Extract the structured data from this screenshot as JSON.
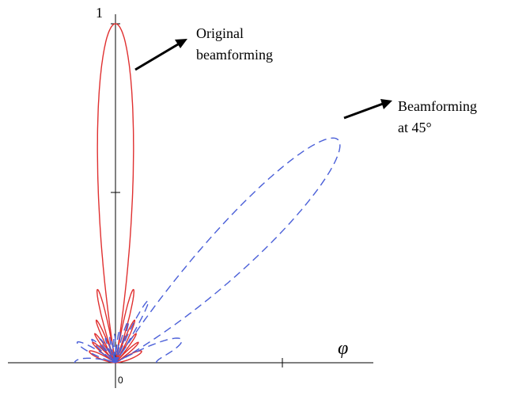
{
  "chart_data": {
    "type": "polar",
    "axis_labels": {
      "y_top": "1",
      "origin": "0",
      "x": "φ"
    },
    "ylim": [
      0,
      1
    ],
    "series": [
      {
        "color": "#e03030",
        "style": "solid",
        "main_lobe_direction_deg": 90,
        "main_lobe_peak": 1.0
      },
      {
        "color": "#4a5fd8",
        "style": "dashed",
        "main_lobe_direction_deg": 45,
        "main_lobe_peak": 0.93
      }
    ],
    "annotations": [
      {
        "series": 0,
        "lines": [
          "Original",
          "beamforming"
        ]
      },
      {
        "series": 1,
        "lines": [
          "Beamforming",
          "at 45°"
        ]
      }
    ]
  }
}
